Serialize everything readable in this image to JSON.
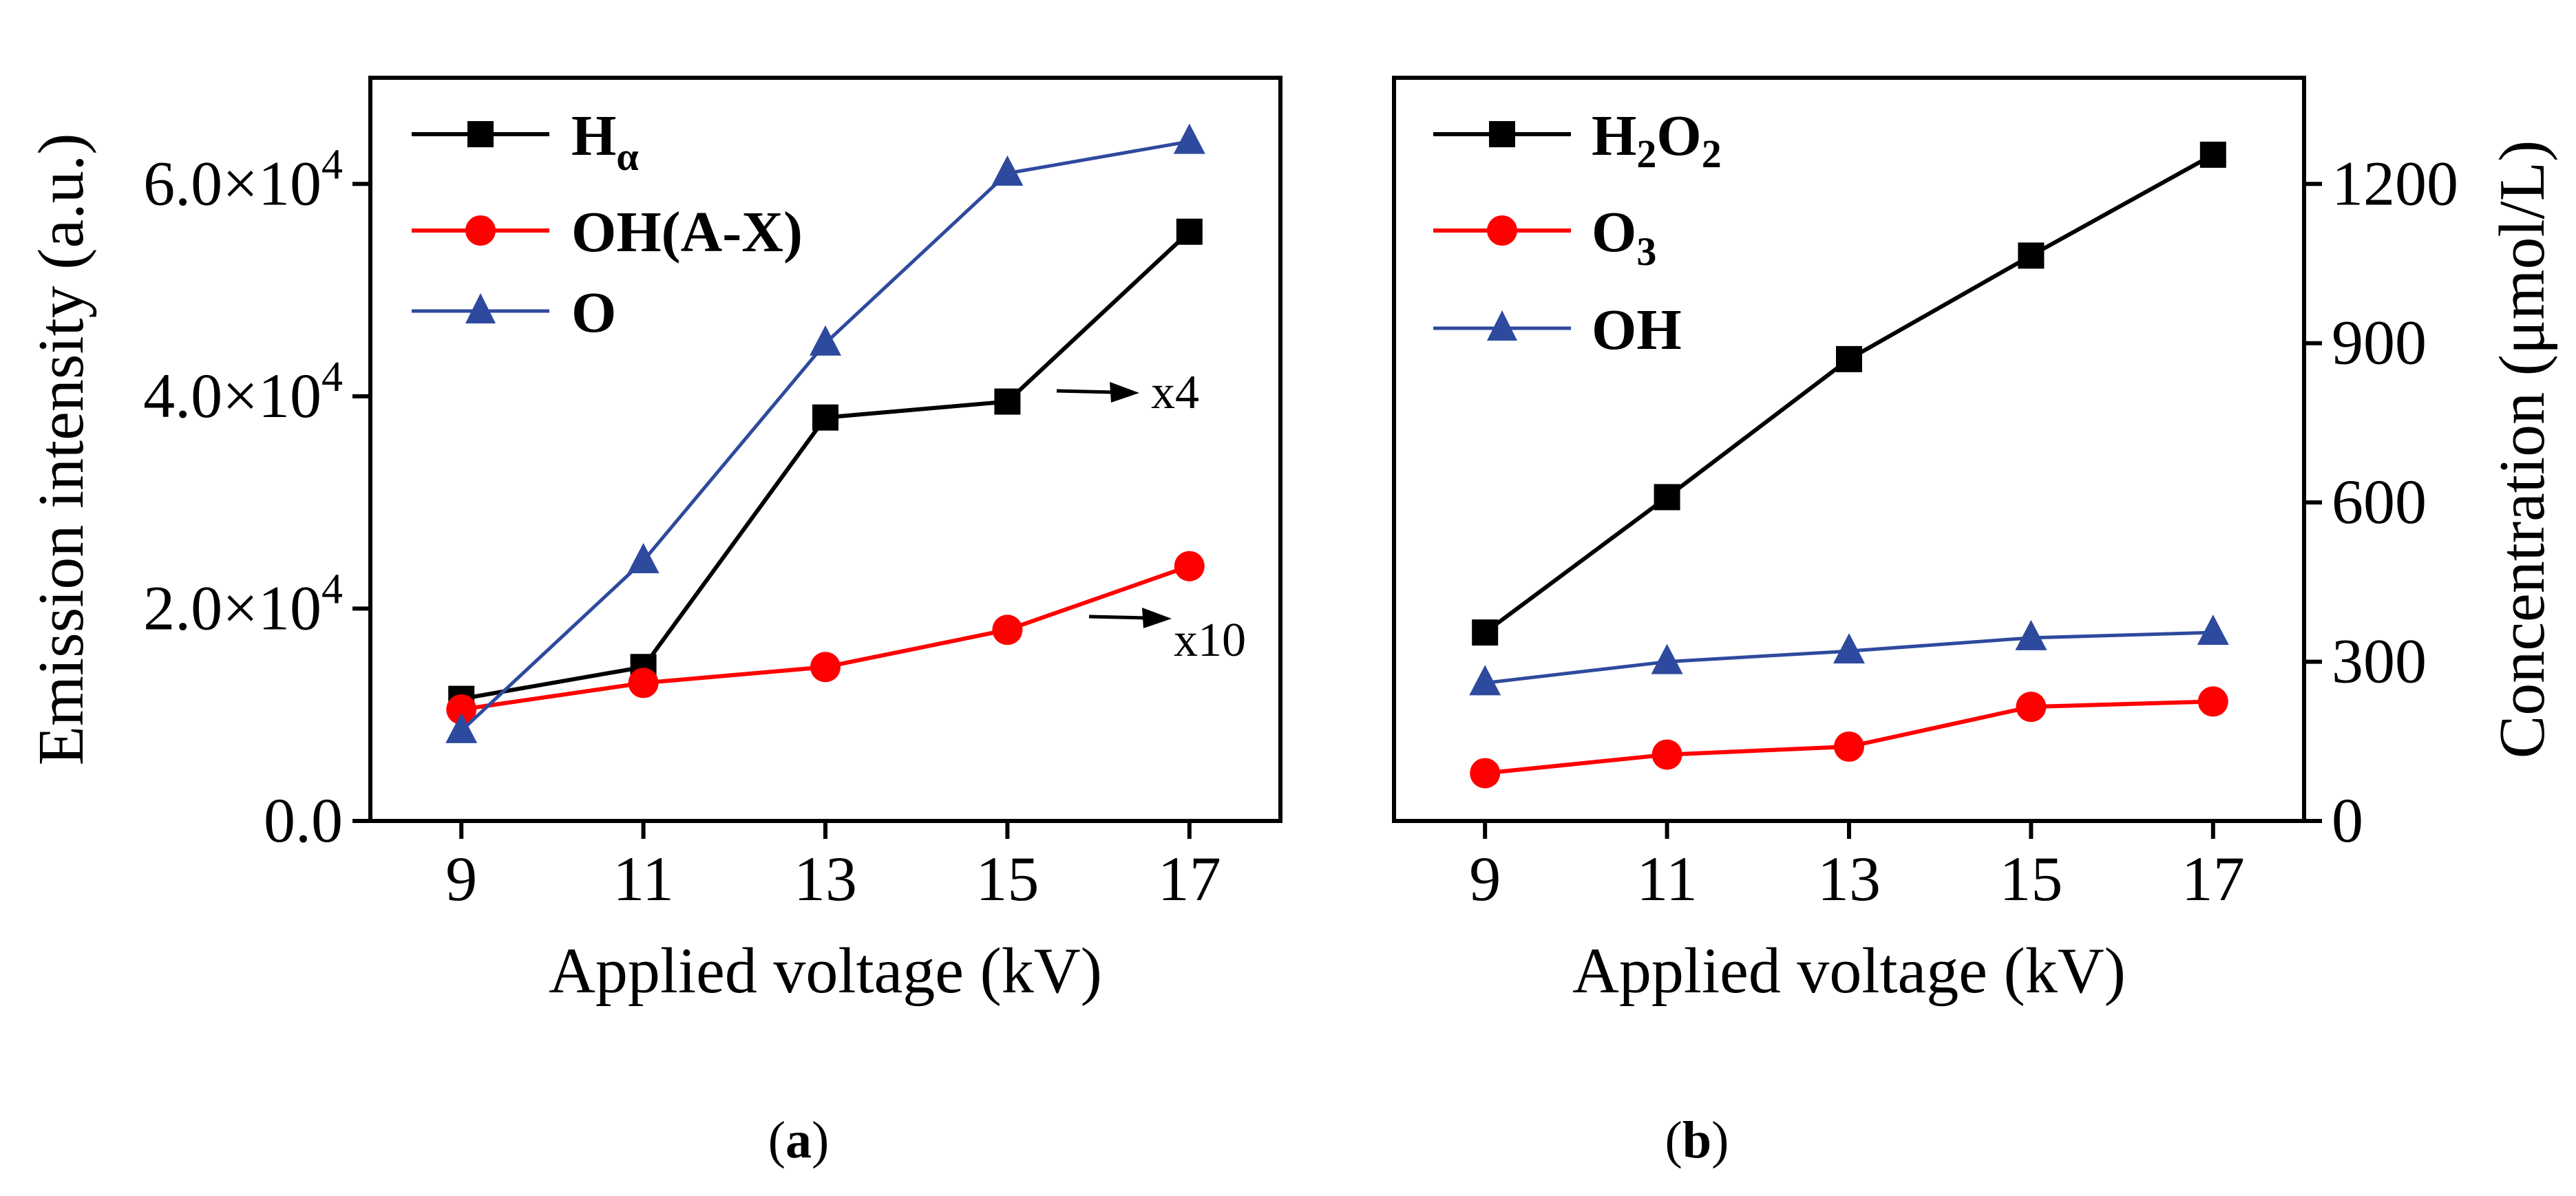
{
  "chart_data": [
    {
      "type": "line",
      "panel_label_parts": [
        "(",
        "a",
        ")"
      ],
      "xlabel": "Applied voltage (kV)",
      "ylabel": "Emission intensity (a.u.)",
      "x": [
        9,
        11,
        13,
        15,
        17
      ],
      "xlim": [
        8,
        18
      ],
      "ylim": [
        0,
        70000
      ],
      "yticks": [
        0,
        20000,
        40000,
        60000
      ],
      "ytick_labels": [
        {
          "base": "0.0",
          "exp": ""
        },
        {
          "base": "2.0×10",
          "exp": "4"
        },
        {
          "base": "4.0×10",
          "exp": "4"
        },
        {
          "base": "6.0×10",
          "exp": "4"
        }
      ],
      "legend_position": "top-left",
      "series": [
        {
          "name": "H",
          "name_sub": "α",
          "color": "#000000",
          "marker": "square",
          "values": [
            11500,
            14500,
            38000,
            39500,
            55500
          ]
        },
        {
          "name": "OH(A-X)",
          "color": "#ff0000",
          "marker": "circle",
          "values": [
            10500,
            13000,
            14500,
            18000,
            24000
          ]
        },
        {
          "name": "O",
          "color": "#2e4a9e",
          "marker": "triangle",
          "values": [
            8500,
            24500,
            45000,
            61000,
            64000
          ]
        }
      ],
      "annotations": [
        {
          "text": "x4",
          "series": "H"
        },
        {
          "text": "x10",
          "series": "OH(A-X)"
        }
      ]
    },
    {
      "type": "line",
      "panel_label_parts": [
        "(",
        "b",
        ")"
      ],
      "xlabel": "Applied voltage (kV)",
      "ylabel": "Concentration (μmol/L)",
      "x": [
        9,
        11,
        13,
        15,
        17
      ],
      "xlim": [
        8,
        18
      ],
      "ylim": [
        0,
        1400
      ],
      "yticks": [
        0,
        300,
        600,
        900,
        1200
      ],
      "ytick_labels": [
        "0",
        "300",
        "600",
        "900",
        "1200"
      ],
      "yaxis_side": "right",
      "legend_position": "top-left",
      "series": [
        {
          "name_parts": [
            "H",
            "2",
            "O",
            "2"
          ],
          "color": "#000000",
          "marker": "square",
          "values": [
            355,
            610,
            870,
            1065,
            1255
          ]
        },
        {
          "name": "O",
          "name_sub": "3",
          "color": "#ff0000",
          "marker": "circle",
          "values": [
            90,
            125,
            140,
            215,
            225
          ]
        },
        {
          "name": "OH",
          "color": "#2e4a9e",
          "marker": "triangle",
          "values": [
            260,
            300,
            320,
            345,
            355
          ]
        }
      ]
    }
  ]
}
